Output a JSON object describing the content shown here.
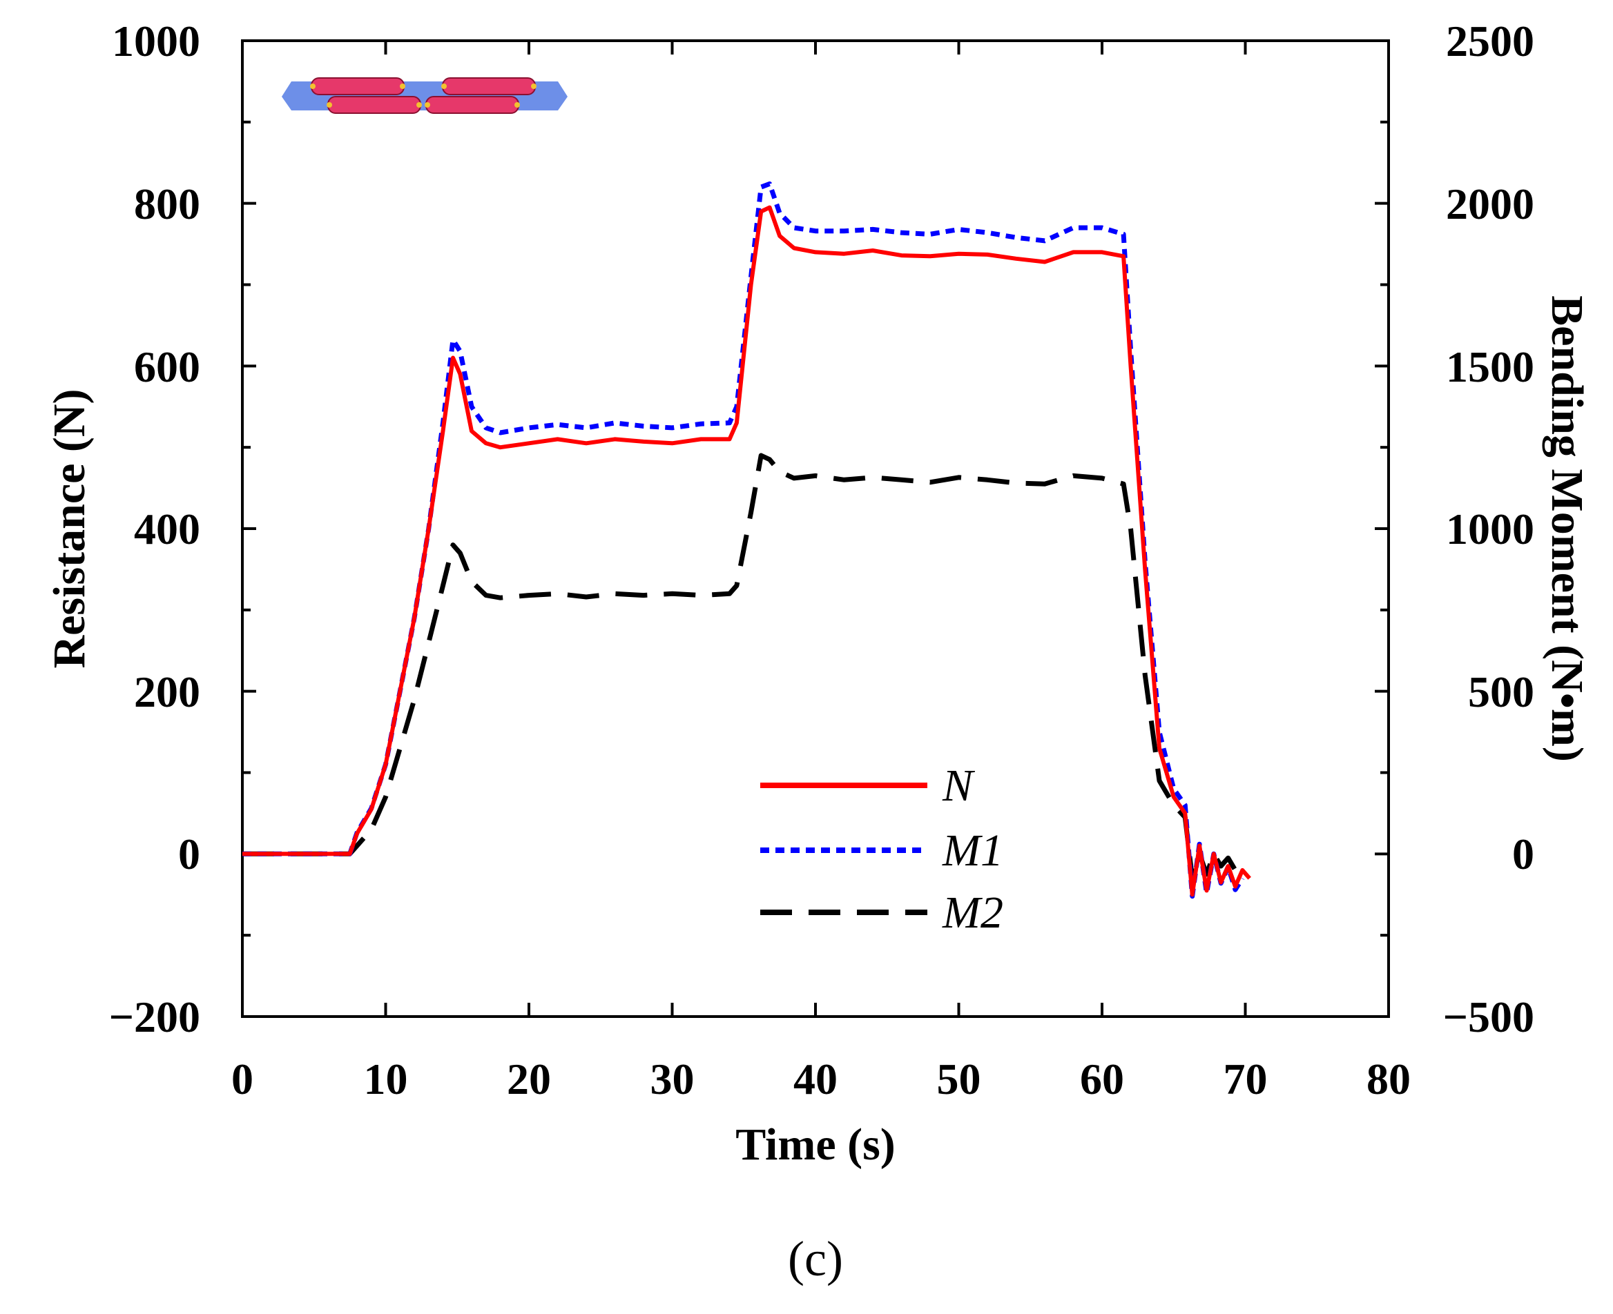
{
  "chart_data": {
    "type": "line",
    "caption": "(c)",
    "xlabel": "Time (s)",
    "ylabel_left": "Resistance (N)",
    "ylabel_right": "Bending Moment (N•m)",
    "xlim": [
      0,
      80
    ],
    "ylim_left": [
      -200,
      1000
    ],
    "ylim_right": [
      -500,
      2500
    ],
    "grid": false,
    "legend_position": "bottom-center",
    "x_ticks": [
      "0",
      "10",
      "20",
      "30",
      "40",
      "50",
      "60",
      "70",
      "80"
    ],
    "y_ticks_left": [
      "−200",
      "0",
      "200",
      "400",
      "600",
      "800",
      "1000"
    ],
    "y_ticks_right": [
      "−500",
      "0",
      "500",
      "1000",
      "1500",
      "2000",
      "2500"
    ],
    "inset": "vehicle-on-platform schematic (red cylinders on blue deck)",
    "series": [
      {
        "name": "N",
        "axis": "left",
        "color": "#ff0000",
        "style": "solid",
        "x": [
          0,
          2,
          4,
          6,
          7.5,
          8,
          9,
          10,
          11,
          12,
          13,
          14,
          14.7,
          15.2,
          16,
          17,
          18,
          20,
          22,
          24,
          26,
          28,
          30,
          32,
          34,
          34.5,
          35.5,
          36.2,
          36.8,
          37.5,
          38.5,
          40,
          42,
          44,
          46,
          48,
          50,
          52,
          54,
          56,
          58,
          60,
          61.5,
          62,
          63,
          64,
          65,
          65.8,
          66.3,
          66.8,
          67.3,
          67.8,
          68.3,
          68.8,
          69.3,
          69.8,
          70.3
        ],
        "y": [
          0,
          0,
          0,
          0,
          0,
          25,
          55,
          110,
          200,
          290,
          400,
          520,
          610,
          590,
          520,
          505,
          500,
          505,
          510,
          505,
          510,
          507,
          505,
          510,
          510,
          530,
          700,
          790,
          795,
          760,
          745,
          740,
          738,
          742,
          736,
          735,
          738,
          737,
          732,
          728,
          740,
          740,
          735,
          600,
          350,
          130,
          70,
          50,
          -50,
          10,
          -45,
          0,
          -35,
          -15,
          -40,
          -20,
          -30
        ]
      },
      {
        "name": "M1",
        "axis": "right",
        "color": "#0000ff",
        "style": "dotted",
        "x": [
          0,
          2,
          4,
          6,
          7.5,
          8,
          9,
          10,
          11,
          12,
          13,
          14,
          14.7,
          15.2,
          16,
          17,
          18,
          20,
          22,
          24,
          26,
          28,
          30,
          32,
          34,
          34.5,
          35.5,
          36.2,
          36.8,
          37.5,
          38.5,
          40,
          42,
          44,
          46,
          48,
          50,
          52,
          54,
          56,
          58,
          60,
          61.5,
          62,
          63,
          64,
          65,
          65.8,
          66.3,
          66.8,
          67.3,
          67.8,
          68.3,
          68.8,
          69.3,
          69.8
        ],
        "y": [
          0,
          0,
          0,
          0,
          0,
          65,
          140,
          275,
          500,
          725,
          1000,
          1325,
          1580,
          1545,
          1375,
          1310,
          1295,
          1310,
          1320,
          1310,
          1325,
          1315,
          1310,
          1322,
          1325,
          1375,
          1775,
          2050,
          2060,
          1970,
          1925,
          1915,
          1915,
          1920,
          1910,
          1905,
          1920,
          1910,
          1895,
          1885,
          1925,
          1925,
          1905,
          1550,
          900,
          375,
          200,
          150,
          -130,
          30,
          -120,
          0,
          -90,
          -40,
          -110,
          -75
        ]
      },
      {
        "name": "M2",
        "axis": "left",
        "color": "#000000",
        "style": "dashed",
        "x": [
          0,
          2,
          4,
          6,
          7.5,
          8,
          9,
          10,
          11,
          12,
          13,
          14,
          14.7,
          15.2,
          16,
          17,
          18,
          20,
          22,
          24,
          26,
          28,
          30,
          32,
          34,
          34.5,
          35.5,
          36.2,
          36.8,
          37.5,
          38.5,
          40,
          42,
          44,
          46,
          48,
          50,
          52,
          54,
          56,
          58,
          60,
          61.5,
          62,
          63,
          64,
          65,
          65.8,
          66.3,
          66.8,
          67.3,
          67.8,
          68.3,
          68.8,
          69.3,
          69.8
        ],
        "y": [
          0,
          0,
          0,
          0,
          0,
          10,
          30,
          70,
          130,
          190,
          260,
          330,
          380,
          370,
          335,
          318,
          315,
          318,
          320,
          316,
          320,
          318,
          320,
          318,
          320,
          330,
          420,
          490,
          485,
          470,
          462,
          465,
          460,
          463,
          460,
          457,
          463,
          460,
          456,
          455,
          465,
          462,
          455,
          400,
          220,
          90,
          60,
          45,
          -30,
          0,
          -25,
          0,
          -15,
          -5,
          -20,
          -10
        ]
      }
    ]
  }
}
